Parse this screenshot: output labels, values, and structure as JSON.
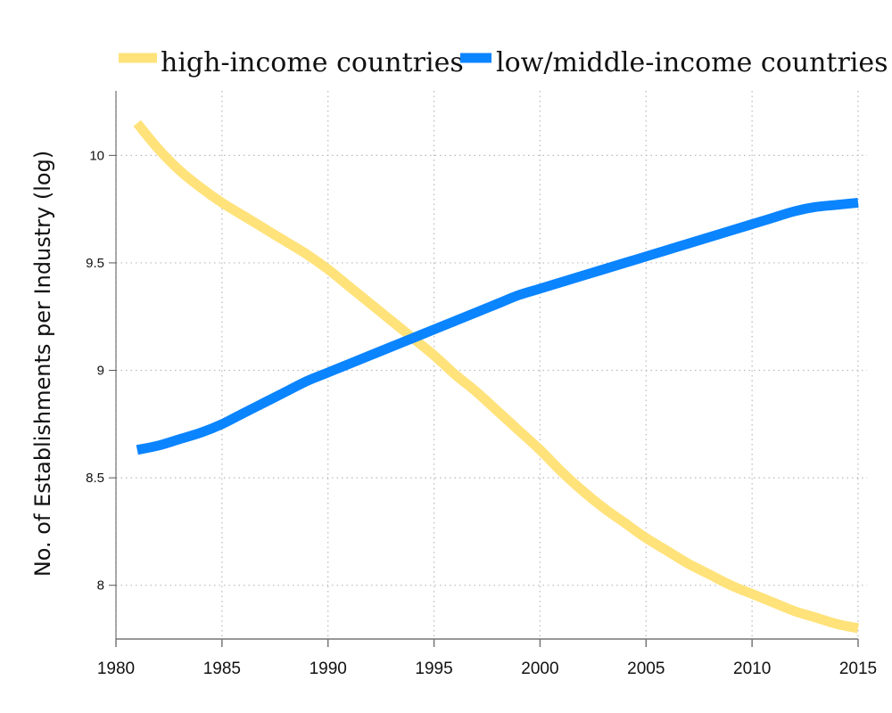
{
  "chart_data": {
    "type": "line",
    "title": "",
    "xlabel": "",
    "ylabel": "No. of Establishments per Industry (log)",
    "xlim": [
      1980,
      2015
    ],
    "ylim": [
      7.75,
      10.3
    ],
    "grid": true,
    "legend_position": "top",
    "x_ticks": [
      "1980",
      "1985",
      "1990",
      "1995",
      "2000",
      "2005",
      "2010",
      "2015"
    ],
    "y_ticks": [
      "8",
      "8.5",
      "9",
      "9.5",
      "10"
    ],
    "series": [
      {
        "name": "high-income countries",
        "color": "#FFE27A",
        "x": [
          1981,
          1982,
          1983,
          1984,
          1985,
          1986,
          1987,
          1988,
          1989,
          1990,
          1991,
          1992,
          1993,
          1994,
          1995,
          1996,
          1997,
          1998,
          1999,
          2000,
          2001,
          2002,
          2003,
          2004,
          2005,
          2006,
          2007,
          2008,
          2009,
          2010,
          2011,
          2012,
          2013,
          2014,
          2015
        ],
        "values": [
          10.15,
          10.03,
          9.93,
          9.85,
          9.78,
          9.72,
          9.66,
          9.6,
          9.54,
          9.47,
          9.39,
          9.31,
          9.23,
          9.15,
          9.07,
          8.98,
          8.9,
          8.81,
          8.72,
          8.63,
          8.53,
          8.44,
          8.36,
          8.29,
          8.22,
          8.16,
          8.1,
          8.05,
          8.0,
          7.96,
          7.92,
          7.88,
          7.85,
          7.82,
          7.8
        ]
      },
      {
        "name": "low/middle-income countries",
        "color": "#0A84FF",
        "x": [
          1981,
          1982,
          1983,
          1984,
          1985,
          1986,
          1987,
          1988,
          1989,
          1990,
          1991,
          1992,
          1993,
          1994,
          1995,
          1996,
          1997,
          1998,
          1999,
          2000,
          2001,
          2002,
          2003,
          2004,
          2005,
          2006,
          2007,
          2008,
          2009,
          2010,
          2011,
          2012,
          2013,
          2014,
          2015
        ],
        "values": [
          8.63,
          8.65,
          8.68,
          8.71,
          8.75,
          8.8,
          8.85,
          8.9,
          8.95,
          8.99,
          9.03,
          9.07,
          9.11,
          9.15,
          9.19,
          9.23,
          9.27,
          9.31,
          9.35,
          9.38,
          9.41,
          9.44,
          9.47,
          9.5,
          9.53,
          9.56,
          9.59,
          9.62,
          9.65,
          9.68,
          9.71,
          9.74,
          9.76,
          9.77,
          9.78
        ]
      }
    ]
  }
}
